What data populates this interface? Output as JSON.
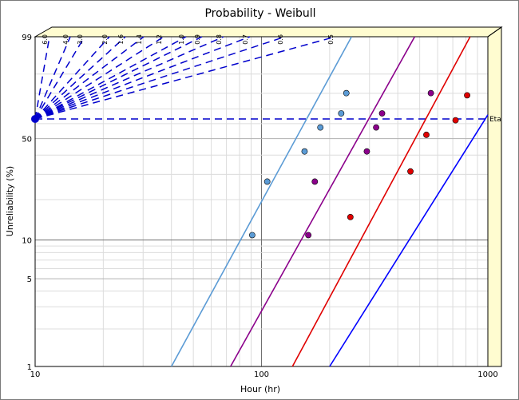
{
  "chart_data": {
    "type": "scatter",
    "title": "Probability - Weibull",
    "xlabel": "Hour (hr)",
    "ylabel": "Unreliability (%)",
    "x_scale": "log",
    "y_scale": "weibull",
    "xlim": [
      10,
      1000
    ],
    "ylim": [
      1,
      99
    ],
    "x_ticks": [
      "10",
      "100",
      "1000"
    ],
    "y_ticks": [
      "1",
      "5",
      "10",
      "50",
      "99"
    ],
    "eta_label": "Eta",
    "eta_percent": 63.2,
    "slope_scale": [
      "6.0",
      "4.0",
      "3.0",
      "2.0",
      "1.6",
      "1.4",
      "1.2",
      "1.0",
      "0.9",
      "0.8",
      "0.7",
      "0.6",
      "0.5"
    ],
    "colors": {
      "series1": "#5b9bd5",
      "series2": "#8b008b",
      "series3": "#e00000",
      "series4": "#0000ff",
      "guides": "#0000cc",
      "side_panel": "#fffcd0"
    },
    "series": [
      {
        "color": "#5b9bd5",
        "points": [
          [
            91,
            10.9
          ],
          [
            106,
            26.8
          ],
          [
            155,
            42.1
          ],
          [
            182,
            57.4
          ],
          [
            225,
            67.0
          ],
          [
            237,
            80.1
          ]
        ],
        "line": [
          [
            40,
            1
          ],
          [
            250,
            99
          ]
        ]
      },
      {
        "color": "#8b008b",
        "points": [
          [
            161,
            10.9
          ],
          [
            172,
            26.8
          ],
          [
            292,
            42.1
          ],
          [
            321,
            57.4
          ],
          [
            341,
            67.0
          ],
          [
            560,
            80.1
          ]
        ],
        "line": [
          [
            73,
            1
          ],
          [
            475,
            99
          ]
        ]
      },
      {
        "color": "#e00000",
        "points": [
          [
            247,
            14.9
          ],
          [
            455,
            31.4
          ],
          [
            535,
            52.5
          ],
          [
            720,
            62.3
          ],
          [
            810,
            78.8
          ]
        ],
        "line": [
          [
            137,
            1
          ],
          [
            835,
            99
          ]
        ]
      },
      {
        "color": "#0000ff",
        "points": [],
        "line": [
          [
            200,
            1
          ],
          [
            1000,
            66
          ]
        ]
      }
    ]
  }
}
